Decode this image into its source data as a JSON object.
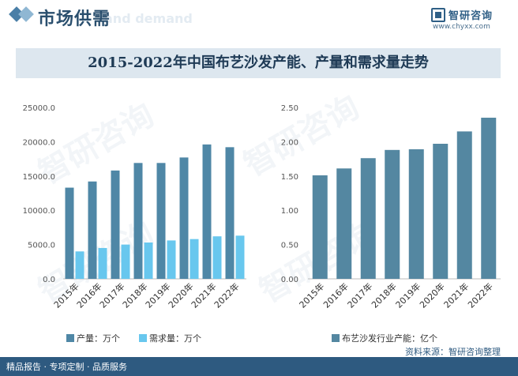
{
  "header": {
    "title": "市场供需",
    "ghost_text": "and demand"
  },
  "logo": {
    "name": "智研咨询",
    "url": "www.chyxx.com"
  },
  "chart_title": "2015-2022年中国布艺沙发产能、产量和需求量走势",
  "watermark": "智研咨询",
  "colors": {
    "production": "#4f87a6",
    "demand": "#68c7ee",
    "capacity": "#5487a1",
    "axis_text": "#555555",
    "footer_bg": "#2e5a80"
  },
  "chart_data": [
    {
      "type": "bar",
      "categories": [
        "2015年",
        "2016年",
        "2017年",
        "2018年",
        "2019年",
        "2020年",
        "2021年",
        "2022年"
      ],
      "series": [
        {
          "name": "产量：万个",
          "values": [
            13300,
            14200,
            15800,
            16900,
            16900,
            17700,
            19600,
            19200
          ]
        },
        {
          "name": "需求量：万个",
          "values": [
            4000,
            4500,
            5000,
            5300,
            5600,
            5800,
            6200,
            6300
          ]
        }
      ],
      "ylim": [
        0,
        25000
      ],
      "yticks": [
        "0.0",
        "5000.0",
        "10000.0",
        "15000.0",
        "20000.0",
        "25000.0"
      ],
      "grid": false,
      "legend": "bottom"
    },
    {
      "type": "bar",
      "categories": [
        "2015年",
        "2016年",
        "2017年",
        "2018年",
        "2019年",
        "2020年",
        "2021年",
        "2022年"
      ],
      "series": [
        {
          "name": "布艺沙发行业产能：亿个",
          "values": [
            1.51,
            1.61,
            1.76,
            1.88,
            1.89,
            1.97,
            2.15,
            2.35
          ]
        }
      ],
      "ylim": [
        0,
        2.5
      ],
      "yticks": [
        "0.00",
        "0.50",
        "1.00",
        "1.50",
        "2.00",
        "2.50"
      ],
      "grid": false,
      "legend": "bottom"
    }
  ],
  "source": "资料来源：智研咨询整理",
  "footer": "精品报告 · 专项定制 · 品质服务"
}
